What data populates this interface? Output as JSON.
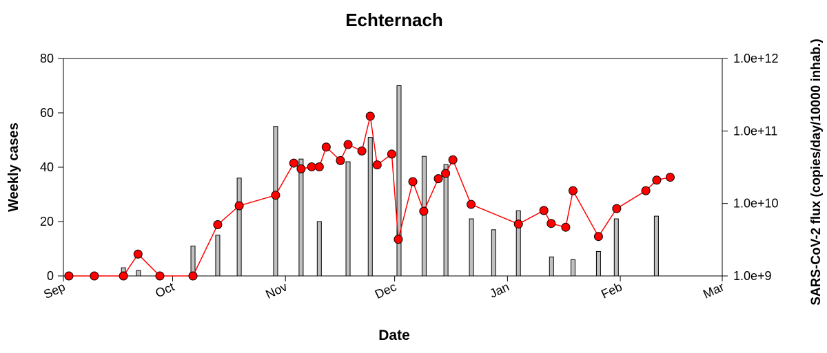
{
  "chart_data": {
    "type": "combo",
    "title": "Echternach",
    "x_label": "Date",
    "y_label": "Weekly cases",
    "y2_label": "SARS-CoV-2 flux (copies/day/10000 inhab.)",
    "xlim": [
      0,
      181
    ],
    "xticks": [
      {
        "value": 0,
        "label": "Sep"
      },
      {
        "value": 30,
        "label": "Oct"
      },
      {
        "value": 61,
        "label": "Nov"
      },
      {
        "value": 91,
        "label": "Dec"
      },
      {
        "value": 122,
        "label": "Jan"
      },
      {
        "value": 153,
        "label": "Feb"
      },
      {
        "value": 181,
        "label": "Mar"
      }
    ],
    "ylim": [
      0,
      80
    ],
    "yticks": [
      0,
      20,
      40,
      60,
      80
    ],
    "y2lim": [
      1000000000.0,
      1000000000000.0
    ],
    "y2log": true,
    "y2ticks": [
      {
        "value": 1000000000.0,
        "label": "1.0e+9"
      },
      {
        "value": 10000000000.0,
        "label": "1.0e+10"
      },
      {
        "value": 100000000000.0,
        "label": "1.0e+11"
      },
      {
        "value": 1000000000000.0,
        "label": "1.0e+12"
      }
    ],
    "series": [
      {
        "type": "bar",
        "color": "#c0c0c0",
        "x": [
          16.5,
          20.6,
          35.6,
          42.4,
          48.3,
          58.3,
          65.3,
          70.3,
          78.2,
          84.3,
          92.2,
          99.1,
          105.1,
          112.1,
          118.2,
          125,
          134.1,
          140,
          147,
          151.9,
          162.9
        ],
        "values": [
          3,
          2,
          11,
          15,
          36,
          55,
          43,
          20,
          42,
          51,
          70,
          44,
          41,
          21,
          17,
          24,
          7,
          6,
          9,
          21,
          22
        ]
      },
      {
        "type": "line",
        "axis": "y2",
        "color": "#ff0000",
        "x": [
          1.5,
          8.5,
          16.5,
          20.5,
          26.5,
          35.6,
          42.4,
          48.3,
          58.3,
          63.3,
          65.3,
          68.2,
          70.3,
          72.2,
          76.1,
          78.2,
          82,
          84.3,
          86.2,
          90.2,
          92,
          96,
          99,
          103,
          105,
          107,
          112,
          125,
          132,
          134,
          138,
          140,
          147,
          152,
          160,
          163,
          166.7
        ],
        "values": [
          1000000000.0,
          1000000000.0,
          1000000000.0,
          2000000000.0,
          1000000000.0,
          1000000000.0,
          5100000000.0,
          9300000000.0,
          13000000000.0,
          36000000000.0,
          30000000000.0,
          32000000000.0,
          32000000000.0,
          60000000000.0,
          39000000000.0,
          65000000000.0,
          53000000000.0,
          160000000000.0,
          34000000000.0,
          48000000000.0,
          3200000000.0,
          20000000000.0,
          7800000000.0,
          22000000000.0,
          26000000000.0,
          40000000000.0,
          9700000000.0,
          5200000000.0,
          8000000000.0,
          5300000000.0,
          4700000000.0,
          15000000000.0,
          3500000000.0,
          8500000000.0,
          15000000000.0,
          21000000000.0,
          23000000000.0
        ]
      }
    ]
  }
}
